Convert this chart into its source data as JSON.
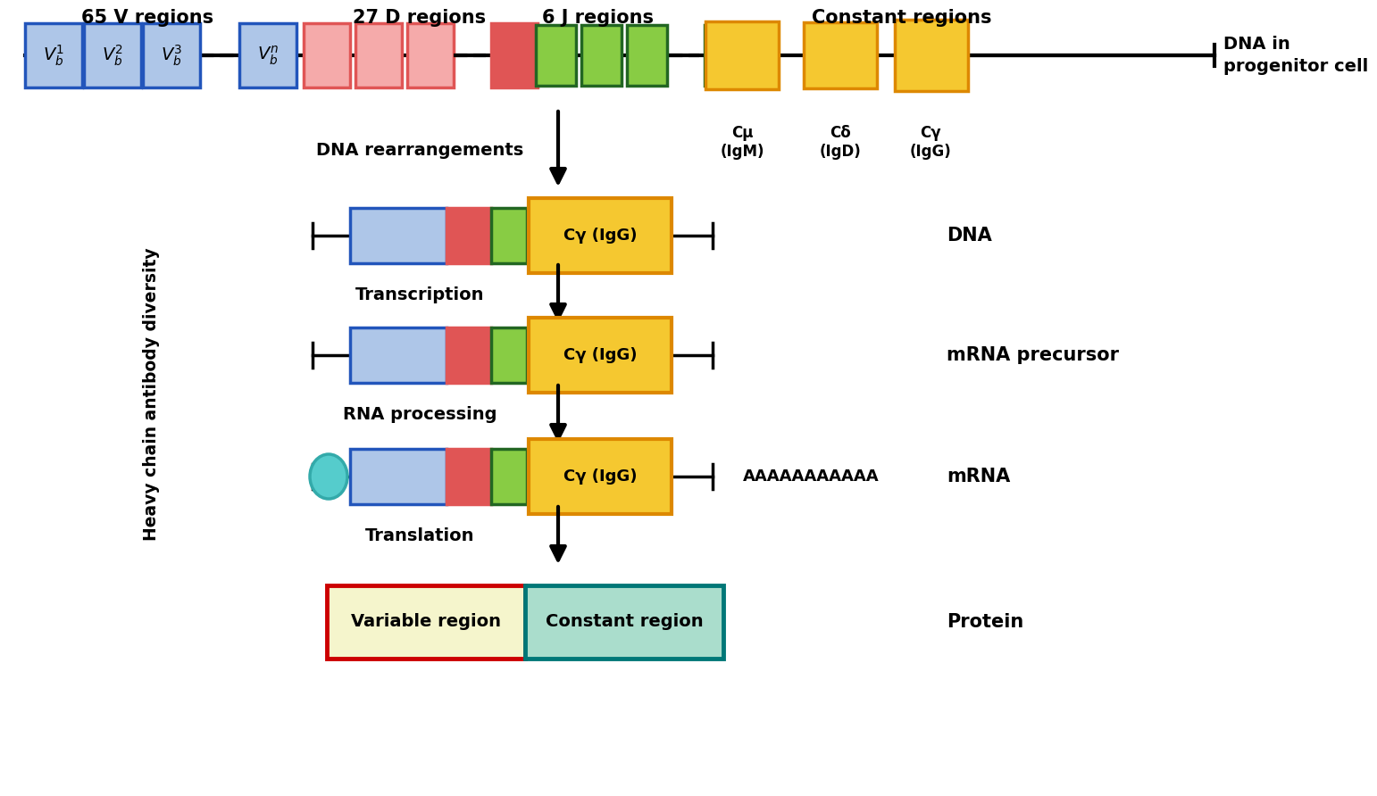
{
  "bg_color": "#ffffff",
  "colors": {
    "vb_fill": "#aec6e8",
    "vb_edge": "#2255bb",
    "d_fill_dark": "#e05555",
    "d_fill_light": "#f5aaaa",
    "j_fill": "#88cc44",
    "j_edge": "#226622",
    "const_fill": "#f5c830",
    "const_edge": "#dd8800",
    "cyan_fill": "#55cccc",
    "cyan_edge": "#33aaaa",
    "protein_var_fill": "#f5f5cc",
    "protein_var_edge": "#cc0000",
    "protein_const_fill": "#aaddcc",
    "protein_const_edge": "#007777"
  },
  "labels": {
    "v_regions": "65 V regions",
    "d_regions": "27 D regions",
    "j_regions": "6 J regions",
    "const_regions": "Constant regions",
    "dna_in_cell": "DNA in\nprogenitor cell",
    "dna_rearrangements": "DNA rearrangements",
    "transcription": "Transcription",
    "rna_processing": "RNA processing",
    "translation": "Translation",
    "heavy_chain_diversity": "Heavy chain antibody diversity",
    "dna": "DNA",
    "mrna_precursor": "mRNA precursor",
    "mrna": "mRNA",
    "protein": "Protein",
    "cmu": "Cμ\n(IgM)",
    "cdelta": "Cδ\n(IgD)",
    "cgamma_top": "Cγ\n(IgG)",
    "cgamma_box": "Cγ (IgG)",
    "poly_a": "AAAAAAAAAAA",
    "variable_region": "Variable region",
    "constant_region": "Constant region"
  }
}
